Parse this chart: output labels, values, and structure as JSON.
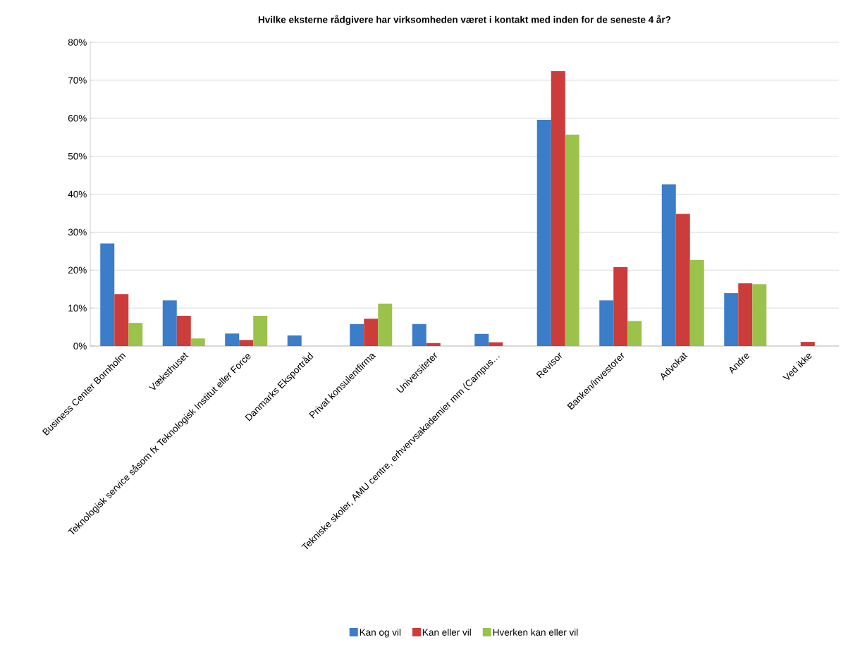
{
  "chart_data": {
    "type": "bar",
    "title": "Hvilke eksterne rådgivere har virksomheden været i kontakt med inden for de seneste 4 år?",
    "categories": [
      "Business Center Bornholm",
      "Væksthuset",
      "Teknologisk service såsom fx Teknologisk Institut eller Force",
      "Danmarks Eksportråd",
      "Privat konsulentfirma",
      "Universiteter",
      "Tekniske skoler, AMU centre, erhvervsakademier mm (Campus…",
      "Revisor",
      "Banken/investorer",
      "Advokat",
      "Andre",
      "Ved ikke"
    ],
    "series": [
      {
        "name": "Kan og vil",
        "color": "#3b7dc8",
        "values": [
          27.0,
          12.0,
          3.3,
          2.8,
          5.8,
          5.8,
          3.2,
          59.6,
          12.0,
          42.6,
          13.9,
          null
        ]
      },
      {
        "name": "Kan eller vil",
        "color": "#cc3c3a",
        "values": [
          13.7,
          8.0,
          1.6,
          null,
          7.2,
          0.8,
          1.0,
          72.4,
          20.8,
          34.8,
          16.5,
          1.1
        ]
      },
      {
        "name": "Hverken kan eller vil",
        "color": "#9bc24a",
        "values": [
          6.1,
          2.0,
          8.0,
          null,
          11.2,
          null,
          null,
          55.7,
          6.6,
          22.7,
          16.3,
          null
        ]
      }
    ],
    "ylim": [
      0,
      80
    ],
    "yticks": [
      {
        "value": 0,
        "label": "0%"
      },
      {
        "value": 10,
        "label": "10%"
      },
      {
        "value": 20,
        "label": "20%"
      },
      {
        "value": 30,
        "label": "30%"
      },
      {
        "value": 40,
        "label": "40%"
      },
      {
        "value": 50,
        "label": "50%"
      },
      {
        "value": 60,
        "label": "60%"
      },
      {
        "value": 70,
        "label": "70%"
      },
      {
        "value": 80,
        "label": "80%"
      }
    ],
    "grid": "y",
    "legend": "bottom"
  }
}
